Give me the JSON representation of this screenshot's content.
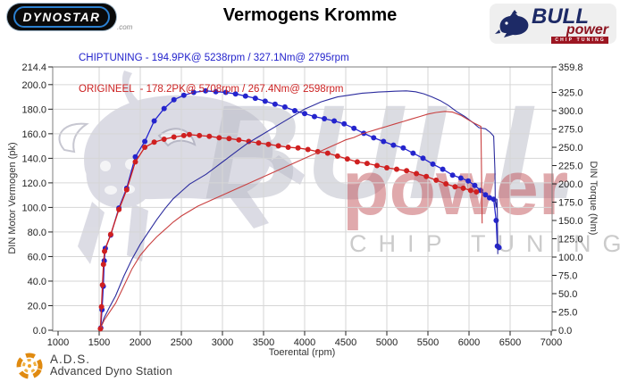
{
  "header": {
    "dynostar_logo": "DYNOSTAR",
    "dynostar_suffix": ".com",
    "title": "Vermogens Kromme",
    "legend": {
      "chiptuning": "CHIPTUNING - 194.9PK@ 5238rpm / 327.1Nm@ 2795rpm",
      "origineel": "ORIGINEEL  - 178.2PK@ 5708rpm / 267.4Nm@ 2598rpm",
      "chiptuning_color": "#2222cc",
      "origineel_color": "#cc2222"
    },
    "bullpower_logo": {
      "name": "BULL",
      "power": "power",
      "subtitle": "CHIP TUNING"
    }
  },
  "watermark": {
    "bull_text": "BULL",
    "power_text": "power",
    "chip_text": "CHIP TUNING"
  },
  "footer": {
    "abbr": "A.D.S.",
    "name": "Advanced Dyno Station"
  },
  "chart_data": {
    "type": "line",
    "title": "Vermogens Kromme",
    "grid": true,
    "x_axis": {
      "label": "Toerental (rpm)",
      "min": 1000,
      "max": 7000,
      "ticks": [
        1000,
        1500,
        2000,
        2500,
        3000,
        3500,
        4000,
        4500,
        5000,
        5500,
        6000,
        6500,
        7000
      ]
    },
    "y_left": {
      "label": "DIN Motor Vermogen (pk)",
      "min": 0,
      "max": 214.4,
      "ticks": [
        {
          "v": 214.4,
          "label": "214.4"
        },
        {
          "v": 200,
          "label": "200.0"
        },
        {
          "v": 180,
          "label": "180.0"
        },
        {
          "v": 160,
          "label": "160.0"
        },
        {
          "v": 140,
          "label": "140.0"
        },
        {
          "v": 120,
          "label": "120.0"
        },
        {
          "v": 100,
          "label": "100.0"
        },
        {
          "v": 80,
          "label": "80.0"
        },
        {
          "v": 60,
          "label": "60.0"
        },
        {
          "v": 40,
          "label": "40.0"
        },
        {
          "v": 20,
          "label": "20.0"
        },
        {
          "v": 0,
          "label": "0.0"
        }
      ]
    },
    "y_right": {
      "label": "DIN Torque (Nm)",
      "min": 0,
      "max": 359.8,
      "ticks": [
        {
          "v": 359.8,
          "label": "359.8"
        },
        {
          "v": 325,
          "label": "325.0"
        },
        {
          "v": 300,
          "label": "300.0"
        },
        {
          "v": 275,
          "label": "275.0"
        },
        {
          "v": 250,
          "label": "250.0"
        },
        {
          "v": 225,
          "label": "225.0"
        },
        {
          "v": 200,
          "label": "200.0"
        },
        {
          "v": 175,
          "label": "175.0"
        },
        {
          "v": 150,
          "label": "150.0"
        },
        {
          "v": 125,
          "label": "125.0"
        },
        {
          "v": 100,
          "label": "100.0"
        },
        {
          "v": 75,
          "label": "75.0"
        },
        {
          "v": 50,
          "label": "50.0"
        },
        {
          "v": 25,
          "label": "25.0"
        },
        {
          "v": 0,
          "label": "0.0"
        }
      ]
    },
    "series": [
      {
        "name": "chiptuning_torque",
        "axis": "right",
        "color": "#2424cd",
        "markers": true,
        "peak_label": "327.1Nm@ 2795rpm",
        "points": [
          [
            1520,
            3
          ],
          [
            1535,
            28
          ],
          [
            1550,
            60
          ],
          [
            1562,
            95
          ],
          [
            1575,
            112
          ],
          [
            1640,
            130
          ],
          [
            1740,
            167
          ],
          [
            1835,
            194
          ],
          [
            1940,
            237
          ],
          [
            2055,
            258
          ],
          [
            2170,
            286
          ],
          [
            2290,
            303
          ],
          [
            2410,
            315
          ],
          [
            2530,
            321
          ],
          [
            2650,
            325
          ],
          [
            2795,
            327.1
          ],
          [
            2920,
            326
          ],
          [
            3040,
            325
          ],
          [
            3160,
            323
          ],
          [
            3280,
            320
          ],
          [
            3400,
            317
          ],
          [
            3520,
            313
          ],
          [
            3640,
            309
          ],
          [
            3760,
            305
          ],
          [
            3880,
            300
          ],
          [
            4000,
            296
          ],
          [
            4120,
            292
          ],
          [
            4240,
            289
          ],
          [
            4360,
            286
          ],
          [
            4480,
            282
          ],
          [
            4600,
            276
          ],
          [
            4720,
            269
          ],
          [
            4840,
            263
          ],
          [
            4960,
            258
          ],
          [
            5080,
            253
          ],
          [
            5200,
            249
          ],
          [
            5320,
            242
          ],
          [
            5440,
            235
          ],
          [
            5560,
            227
          ],
          [
            5680,
            220
          ],
          [
            5800,
            212
          ],
          [
            5900,
            208
          ],
          [
            5990,
            204
          ],
          [
            6070,
            198
          ],
          [
            6140,
            191
          ],
          [
            6200,
            185
          ],
          [
            6250,
            181
          ],
          [
            6300,
            179
          ],
          [
            6330,
            150
          ],
          [
            6345,
            115
          ],
          [
            6365,
            113
          ]
        ]
      },
      {
        "name": "origineel_torque",
        "axis": "right",
        "color": "#cf2020",
        "markers": true,
        "peak_label": "267.4Nm@ 2598rpm",
        "points": [
          [
            1515,
            2
          ],
          [
            1528,
            32
          ],
          [
            1540,
            62
          ],
          [
            1552,
            90
          ],
          [
            1565,
            108
          ],
          [
            1640,
            131
          ],
          [
            1740,
            165
          ],
          [
            1835,
            192
          ],
          [
            1940,
            230
          ],
          [
            2055,
            250
          ],
          [
            2170,
            257
          ],
          [
            2290,
            261
          ],
          [
            2410,
            264
          ],
          [
            2530,
            266
          ],
          [
            2598,
            267.4
          ],
          [
            2720,
            266
          ],
          [
            2840,
            265
          ],
          [
            2960,
            263
          ],
          [
            3080,
            262
          ],
          [
            3200,
            260
          ],
          [
            3320,
            258
          ],
          [
            3440,
            256
          ],
          [
            3560,
            254
          ],
          [
            3680,
            252
          ],
          [
            3800,
            250
          ],
          [
            3920,
            249
          ],
          [
            4040,
            247
          ],
          [
            4160,
            244
          ],
          [
            4280,
            242
          ],
          [
            4400,
            238
          ],
          [
            4520,
            234
          ],
          [
            4640,
            230
          ],
          [
            4760,
            228
          ],
          [
            4880,
            225
          ],
          [
            5000,
            222
          ],
          [
            5120,
            220
          ],
          [
            5240,
            218
          ],
          [
            5360,
            214
          ],
          [
            5480,
            210
          ],
          [
            5600,
            205
          ],
          [
            5720,
            200
          ],
          [
            5830,
            196
          ],
          [
            5930,
            194
          ],
          [
            6020,
            191
          ],
          [
            6090,
            189
          ]
        ]
      },
      {
        "name": "chiptuning_power",
        "axis": "left",
        "color": "#2c2c9e",
        "markers": false,
        "peak_label": "194.9PK@ 5238rpm",
        "points": [
          [
            1520,
            2
          ],
          [
            1560,
            10
          ],
          [
            1620,
            18
          ],
          [
            1700,
            28
          ],
          [
            1800,
            44
          ],
          [
            1900,
            58
          ],
          [
            2000,
            70
          ],
          [
            2100,
            80
          ],
          [
            2200,
            90
          ],
          [
            2300,
            99
          ],
          [
            2400,
            107
          ],
          [
            2500,
            113
          ],
          [
            2600,
            119
          ],
          [
            2700,
            123
          ],
          [
            2800,
            127
          ],
          [
            2900,
            132
          ],
          [
            3000,
            137
          ],
          [
            3100,
            142
          ],
          [
            3200,
            147
          ],
          [
            3300,
            152
          ],
          [
            3400,
            156
          ],
          [
            3500,
            160
          ],
          [
            3600,
            164
          ],
          [
            3700,
            168
          ],
          [
            3800,
            172
          ],
          [
            3900,
            176
          ],
          [
            4000,
            180
          ],
          [
            4100,
            183
          ],
          [
            4200,
            186
          ],
          [
            4300,
            188
          ],
          [
            4400,
            190
          ],
          [
            4500,
            191
          ],
          [
            4600,
            192
          ],
          [
            4700,
            193
          ],
          [
            4800,
            193.5
          ],
          [
            4900,
            194
          ],
          [
            5000,
            194.3
          ],
          [
            5100,
            194.6
          ],
          [
            5238,
            194.9
          ],
          [
            5350,
            194.2
          ],
          [
            5450,
            192.5
          ],
          [
            5550,
            190
          ],
          [
            5650,
            187
          ],
          [
            5750,
            183
          ],
          [
            5850,
            178
          ],
          [
            5950,
            174
          ],
          [
            6050,
            169
          ],
          [
            6120,
            165
          ],
          [
            6200,
            164
          ],
          [
            6260,
            161
          ],
          [
            6300,
            158
          ],
          [
            6315,
            130
          ],
          [
            6320,
            105
          ],
          [
            6330,
            100
          ],
          [
            6340,
            107
          ],
          [
            6345,
            96
          ],
          [
            6350,
            62
          ]
        ]
      },
      {
        "name": "origineel_power",
        "axis": "left",
        "color": "#c94040",
        "markers": false,
        "peak_label": "178.2PK@ 5708rpm",
        "points": [
          [
            1520,
            2
          ],
          [
            1560,
            8
          ],
          [
            1620,
            14
          ],
          [
            1700,
            22
          ],
          [
            1800,
            36
          ],
          [
            1900,
            50
          ],
          [
            2000,
            61
          ],
          [
            2100,
            69
          ],
          [
            2200,
            76
          ],
          [
            2300,
            82
          ],
          [
            2400,
            88
          ],
          [
            2500,
            93
          ],
          [
            2600,
            97
          ],
          [
            2700,
            101
          ],
          [
            2800,
            104
          ],
          [
            2900,
            107
          ],
          [
            3000,
            110
          ],
          [
            3100,
            113
          ],
          [
            3200,
            116
          ],
          [
            3300,
            119
          ],
          [
            3400,
            122
          ],
          [
            3500,
            125
          ],
          [
            3600,
            128
          ],
          [
            3700,
            131
          ],
          [
            3800,
            134
          ],
          [
            3900,
            137
          ],
          [
            4000,
            140
          ],
          [
            4100,
            143
          ],
          [
            4200,
            146
          ],
          [
            4300,
            149
          ],
          [
            4400,
            152
          ],
          [
            4500,
            155
          ],
          [
            4600,
            157
          ],
          [
            4700,
            160
          ],
          [
            4800,
            162
          ],
          [
            4900,
            164
          ],
          [
            5000,
            166
          ],
          [
            5100,
            168
          ],
          [
            5200,
            170
          ],
          [
            5300,
            172
          ],
          [
            5400,
            174
          ],
          [
            5500,
            176
          ],
          [
            5600,
            177.3
          ],
          [
            5708,
            178.2
          ],
          [
            5800,
            177.6
          ],
          [
            5900,
            175
          ],
          [
            6000,
            171
          ],
          [
            6080,
            168
          ],
          [
            6145,
            166
          ],
          [
            6150,
            140
          ],
          [
            6155,
            110
          ],
          [
            6160,
            87
          ]
        ]
      }
    ]
  }
}
